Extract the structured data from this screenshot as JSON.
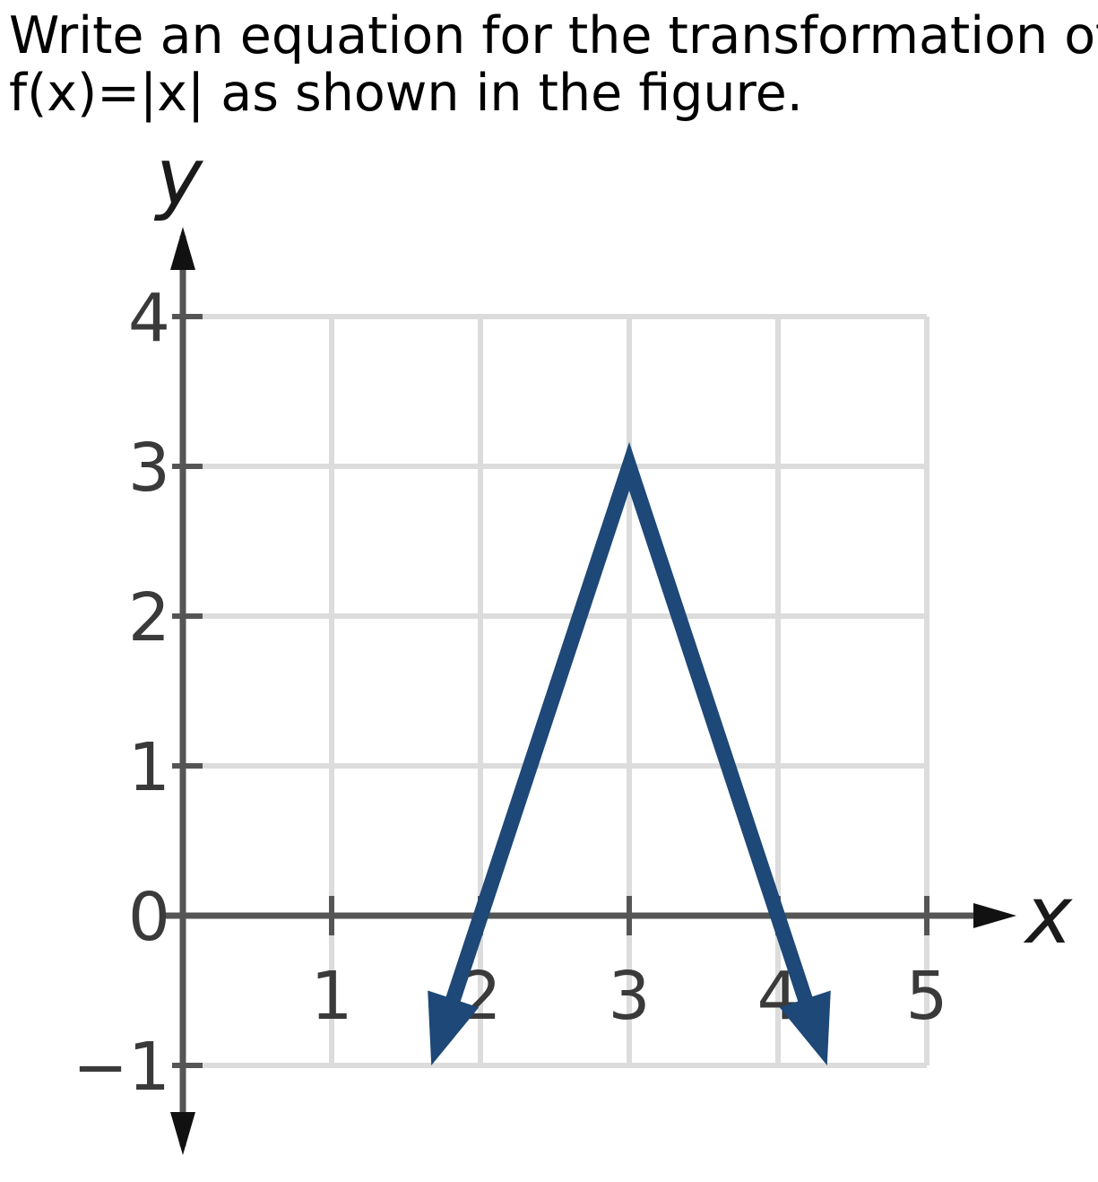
{
  "question": {
    "line1": "Write an equation for the transformation of",
    "line2": "f(x)=|x| as shown in the figure."
  },
  "chart_data": {
    "type": "line",
    "title": "",
    "xlabel": "x",
    "ylabel": "y",
    "xlim": [
      0,
      5
    ],
    "ylim": [
      -1,
      4
    ],
    "x_ticks": [
      1,
      2,
      3,
      4,
      5
    ],
    "y_ticks": [
      -1,
      0,
      1,
      2,
      3,
      4
    ],
    "x_tick_labels": [
      "1",
      "2",
      "3",
      "4",
      "5"
    ],
    "y_tick_labels": [
      "−1",
      "0",
      "1",
      "2",
      "3",
      "4"
    ],
    "grid": true,
    "series": [
      {
        "points": [
          [
            1.67,
            -1
          ],
          [
            3,
            3
          ],
          [
            4.33,
            -1
          ]
        ],
        "color": "#1d4877",
        "arrows_at_ends": true
      }
    ],
    "axis_color": "#555555",
    "grid_color": "#dcdcdc"
  }
}
